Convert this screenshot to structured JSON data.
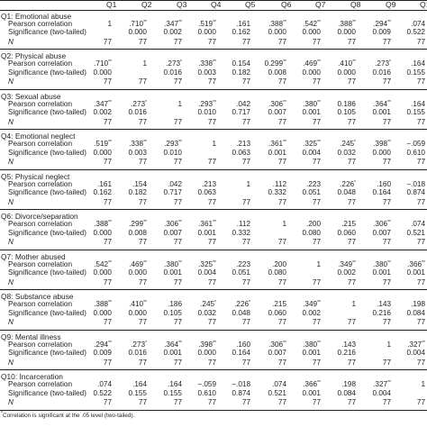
{
  "columns": [
    "Q1",
    "Q2",
    "Q3",
    "Q4",
    "Q5",
    "Q6",
    "Q7",
    "Q8",
    "Q9",
    "Q10"
  ],
  "row_labels": {
    "pearson": "Pearson correlation",
    "significance": "Significance (two-tailed)",
    "n": "N"
  },
  "groups": [
    {
      "label": "Q1: Emotional abuse",
      "r": [
        "1",
        ".710**",
        ".347**",
        ".519**",
        ".161",
        ".388**",
        ".542**",
        ".388**",
        ".294**",
        ".074"
      ],
      "p": [
        "",
        "0.000",
        "0.002",
        "0.000",
        "0.162",
        "0.000",
        "0.000",
        "0.000",
        "0.009",
        "0.522"
      ],
      "n": [
        "77",
        "77",
        "77",
        "77",
        "77",
        "77",
        "77",
        "77",
        "77",
        "77"
      ]
    },
    {
      "label": "Q2: Physical abuse",
      "r": [
        ".710**",
        "1",
        ".273*",
        ".338**",
        "0.154",
        "0.299**",
        ".469**",
        ".410**",
        ".273*",
        ".164"
      ],
      "p": [
        "0.000",
        "",
        "0.016",
        "0.003",
        "0.182",
        "0.008",
        "0.000",
        "0.000",
        "0.016",
        "0.155"
      ],
      "n": [
        "77",
        "77",
        "77",
        "77",
        "77",
        "77",
        "77",
        "77",
        "77",
        "77"
      ]
    },
    {
      "label": "Q3: Sexual abuse",
      "r": [
        ".347**",
        ".273*",
        "1",
        ".293**",
        ".042",
        ".306**",
        ".380**",
        "0.186",
        ".364**",
        ".164"
      ],
      "p": [
        "0.002",
        "0.016",
        "",
        "0.010",
        "0.717",
        "0.007",
        "0.001",
        "0.105",
        "0.001",
        "0.155"
      ],
      "n": [
        "77",
        "77",
        "77",
        "77",
        "77",
        "77",
        "77",
        "77",
        "77",
        "77"
      ]
    },
    {
      "label": "Q4: Emotional neglect",
      "r": [
        ".519**",
        ".338**",
        ".293**",
        "1",
        ".213",
        ".361**",
        ".325**",
        ".245*",
        ".398**",
        "−.059"
      ],
      "p": [
        "0.000",
        "0.003",
        "0.010",
        "",
        "0.063",
        "0.001",
        "0.004",
        "0.032",
        "0.000",
        "0.610"
      ],
      "n": [
        "77",
        "77",
        "77",
        "77",
        "77",
        "77",
        "77",
        "77",
        "77",
        "77"
      ]
    },
    {
      "label": "Q5: Physical neglect",
      "r": [
        ".161",
        ".154",
        ".042",
        ".213",
        "1",
        ".112",
        ".223",
        ".226*",
        ".160",
        "−.018"
      ],
      "p": [
        "0.162",
        "0.182",
        "0.717",
        "0.063",
        "",
        "0.332",
        "0.051",
        "0.048",
        "0.164",
        "0.874"
      ],
      "n": [
        "77",
        "77",
        "77",
        "77",
        "77",
        "77",
        "77",
        "77",
        "77",
        "77"
      ]
    },
    {
      "label": "Q6: Divorce/separation",
      "r": [
        ".388**",
        ".299**",
        ".306**",
        ".361**",
        ".112",
        "1",
        ".200",
        ".215",
        ".306**",
        ".074"
      ],
      "p": [
        "0.000",
        "0.008",
        "0.007",
        "0.001",
        "0.332",
        "",
        "0.080",
        "0.060",
        "0.007",
        "0.521"
      ],
      "n": [
        "77",
        "77",
        "77",
        "77",
        "77",
        "77",
        "77",
        "77",
        "77",
        "77"
      ]
    },
    {
      "label": "Q7: Mother abused",
      "r": [
        ".542**",
        ".469**",
        ".380**",
        ".325**",
        ".223",
        ".200",
        "1",
        ".349**",
        ".380**",
        ".366**"
      ],
      "p": [
        "0.000",
        "0.000",
        "0.001",
        "0.004",
        "0.051",
        "0.080",
        "",
        "0.002",
        "0.001",
        "0.001"
      ],
      "n": [
        "77",
        "77",
        "77",
        "77",
        "77",
        "77",
        "77",
        "77",
        "77",
        "77"
      ]
    },
    {
      "label": "Q8: Substance abuse",
      "r": [
        ".388**",
        ".410**",
        ".186",
        ".245*",
        ".226*",
        ".215",
        ".349**",
        "1",
        ".143",
        ".198"
      ],
      "p": [
        "0.000",
        "0.000",
        "0.105",
        "0.032",
        "0.048",
        "0.060",
        "0.002",
        "",
        "0.216",
        "0.084"
      ],
      "n": [
        "77",
        "77",
        "77",
        "77",
        "77",
        "77",
        "77",
        "77",
        "77",
        "77"
      ]
    },
    {
      "label": "Q9: Mental illness",
      "r": [
        ".294**",
        ".273*",
        ".364**",
        ".398**",
        ".160",
        ".306**",
        ".380**",
        ".143",
        "1",
        ".327**"
      ],
      "p": [
        "0.009",
        "0.016",
        "0.001",
        "0.000",
        "0.164",
        "0.007",
        "0.001",
        "0.216",
        "",
        "0.004"
      ],
      "n": [
        "77",
        "77",
        "77",
        "77",
        "77",
        "77",
        "77",
        "77",
        "77",
        "77"
      ]
    },
    {
      "label": "Q10: Incarceration",
      "r": [
        ".074",
        ".164",
        ".164",
        "−.059",
        "−.018",
        ".074",
        ".366**",
        ".198",
        ".327**",
        "1"
      ],
      "p": [
        "0.522",
        "0.155",
        "0.155",
        "0.610",
        "0.874",
        "0.521",
        "0.001",
        "0.084",
        "0.004",
        ""
      ],
      "n": [
        "77",
        "77",
        "77",
        "77",
        "77",
        "77",
        "77",
        "77",
        "77",
        "77"
      ]
    }
  ],
  "footnote": "Correlation is significant at the .05 level (two-tailed).",
  "footnote_marker": "*"
}
